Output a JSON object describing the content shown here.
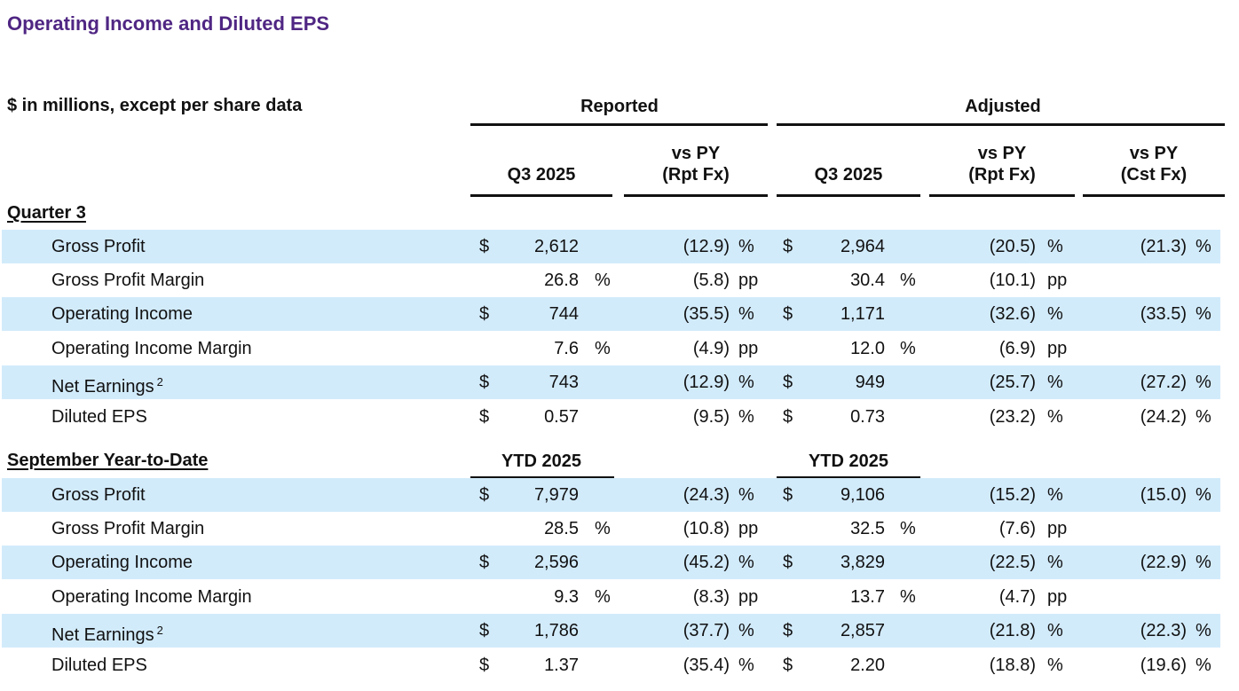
{
  "title": "Operating Income and Diluted EPS",
  "units_note": "$ in millions, except per share data",
  "groups": {
    "reported": "Reported",
    "adjusted": "Adjusted"
  },
  "columns": {
    "rep_period": "Q3 2025",
    "rep_vs_py_1": "vs PY",
    "rep_vs_py_2": "(Rpt Fx)",
    "adj_period": "Q3 2025",
    "adj_vs_py_1": "vs PY",
    "adj_vs_py_2": "(Rpt Fx)",
    "adj_cst_1": "vs PY",
    "adj_cst_2": "(Cst Fx)"
  },
  "sections": [
    {
      "heading": "Quarter 3",
      "rows": [
        {
          "label": "Gross Profit",
          "footnote": "",
          "rep_cur": "$",
          "rep_val": "2,612",
          "rep_unit": "",
          "rep_vs": "(12.9)",
          "rep_vs_unit": "%",
          "adj_cur": "$",
          "adj_val": "2,964",
          "adj_unit": "",
          "adj_vs": "(20.5)",
          "adj_vs_unit": "%",
          "cst_vs": "(21.3)",
          "cst_unit": "%"
        },
        {
          "label": "Gross Profit Margin",
          "footnote": "",
          "rep_cur": "",
          "rep_val": "26.8",
          "rep_unit": "%",
          "rep_vs": "(5.8)",
          "rep_vs_unit": "pp",
          "adj_cur": "",
          "adj_val": "30.4",
          "adj_unit": "%",
          "adj_vs": "(10.1)",
          "adj_vs_unit": "pp",
          "cst_vs": "",
          "cst_unit": ""
        },
        {
          "label": "Operating Income",
          "footnote": "",
          "rep_cur": "$",
          "rep_val": "744",
          "rep_unit": "",
          "rep_vs": "(35.5)",
          "rep_vs_unit": "%",
          "adj_cur": "$",
          "adj_val": "1,171",
          "adj_unit": "",
          "adj_vs": "(32.6)",
          "adj_vs_unit": "%",
          "cst_vs": "(33.5)",
          "cst_unit": "%"
        },
        {
          "label": "Operating Income Margin",
          "footnote": "",
          "rep_cur": "",
          "rep_val": "7.6",
          "rep_unit": "%",
          "rep_vs": "(4.9)",
          "rep_vs_unit": "pp",
          "adj_cur": "",
          "adj_val": "12.0",
          "adj_unit": "%",
          "adj_vs": "(6.9)",
          "adj_vs_unit": "pp",
          "cst_vs": "",
          "cst_unit": ""
        },
        {
          "label": "Net Earnings",
          "footnote": "2",
          "rep_cur": "$",
          "rep_val": "743",
          "rep_unit": "",
          "rep_vs": "(12.9)",
          "rep_vs_unit": "%",
          "adj_cur": "$",
          "adj_val": "949",
          "adj_unit": "",
          "adj_vs": "(25.7)",
          "adj_vs_unit": "%",
          "cst_vs": "(27.2)",
          "cst_unit": "%"
        },
        {
          "label": "Diluted EPS",
          "footnote": "",
          "rep_cur": "$",
          "rep_val": "0.57",
          "rep_unit": "",
          "rep_vs": "(9.5)",
          "rep_vs_unit": "%",
          "adj_cur": "$",
          "adj_val": "0.73",
          "adj_unit": "",
          "adj_vs": "(23.2)",
          "adj_vs_unit": "%",
          "cst_vs": "(24.2)",
          "cst_unit": "%"
        }
      ]
    },
    {
      "heading": "September Year-to-Date",
      "rep_period": "YTD 2025",
      "adj_period": "YTD 2025",
      "rows": [
        {
          "label": "Gross Profit",
          "footnote": "",
          "rep_cur": "$",
          "rep_val": "7,979",
          "rep_unit": "",
          "rep_vs": "(24.3)",
          "rep_vs_unit": "%",
          "adj_cur": "$",
          "adj_val": "9,106",
          "adj_unit": "",
          "adj_vs": "(15.2)",
          "adj_vs_unit": "%",
          "cst_vs": "(15.0)",
          "cst_unit": "%"
        },
        {
          "label": "Gross Profit Margin",
          "footnote": "",
          "rep_cur": "",
          "rep_val": "28.5",
          "rep_unit": "%",
          "rep_vs": "(10.8)",
          "rep_vs_unit": "pp",
          "adj_cur": "",
          "adj_val": "32.5",
          "adj_unit": "%",
          "adj_vs": "(7.6)",
          "adj_vs_unit": "pp",
          "cst_vs": "",
          "cst_unit": ""
        },
        {
          "label": "Operating Income",
          "footnote": "",
          "rep_cur": "$",
          "rep_val": "2,596",
          "rep_unit": "",
          "rep_vs": "(45.2)",
          "rep_vs_unit": "%",
          "adj_cur": "$",
          "adj_val": "3,829",
          "adj_unit": "",
          "adj_vs": "(22.5)",
          "adj_vs_unit": "%",
          "cst_vs": "(22.9)",
          "cst_unit": "%"
        },
        {
          "label": "Operating Income Margin",
          "footnote": "",
          "rep_cur": "",
          "rep_val": "9.3",
          "rep_unit": "%",
          "rep_vs": "(8.3)",
          "rep_vs_unit": "pp",
          "adj_cur": "",
          "adj_val": "13.7",
          "adj_unit": "%",
          "adj_vs": "(4.7)",
          "adj_vs_unit": "pp",
          "cst_vs": "",
          "cst_unit": ""
        },
        {
          "label": "Net Earnings",
          "footnote": "2",
          "rep_cur": "$",
          "rep_val": "1,786",
          "rep_unit": "",
          "rep_vs": "(37.7)",
          "rep_vs_unit": "%",
          "adj_cur": "$",
          "adj_val": "2,857",
          "adj_unit": "",
          "adj_vs": "(21.8)",
          "adj_vs_unit": "%",
          "cst_vs": "(22.3)",
          "cst_unit": "%"
        },
        {
          "label": "Diluted EPS",
          "footnote": "",
          "rep_cur": "$",
          "rep_val": "1.37",
          "rep_unit": "",
          "rep_vs": "(35.4)",
          "rep_vs_unit": "%",
          "adj_cur": "$",
          "adj_val": "2.20",
          "adj_unit": "",
          "adj_vs": "(18.8)",
          "adj_vs_unit": "%",
          "cst_vs": "(19.6)",
          "cst_unit": "%"
        }
      ]
    }
  ],
  "colors": {
    "title": "#4f2683",
    "row_shade": "#d2ebfb",
    "text": "#111111"
  }
}
